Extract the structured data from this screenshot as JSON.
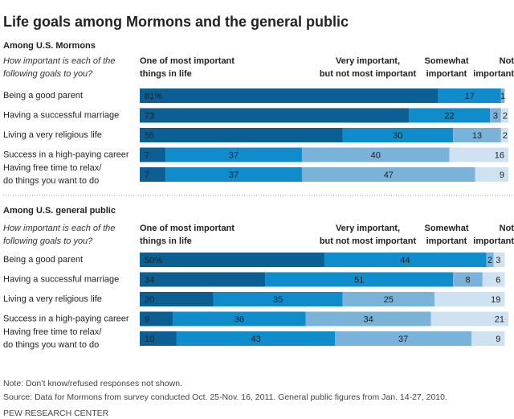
{
  "title": "Life goals among Mormons and the general public",
  "chart_data": [
    {
      "type": "bar",
      "orientation": "horizontal",
      "stacked": true,
      "heading": "Among U.S. Mormons",
      "question": "How important is each of the\nfollowing goals to you?",
      "xlim": [
        0,
        100
      ],
      "categories": [
        "Being a good parent",
        "Having a successful marriage",
        "Living a very religious life",
        "Success in a high-paying career",
        "Having free time to relax/\ndo things you want to do"
      ],
      "series": [
        {
          "name": "One of most important\nthings in life",
          "color": "#0b5f93",
          "values": [
            81,
            73,
            55,
            7,
            7
          ],
          "value_labels": [
            "81%",
            "73",
            "55",
            "7",
            "7"
          ]
        },
        {
          "name": "Very important,\nbut not most important",
          "color": "#0f8ccb",
          "values": [
            17,
            22,
            30,
            37,
            37
          ]
        },
        {
          "name": "Somewhat\nimportant",
          "color": "#7ab3da",
          "values": [
            1,
            3,
            13,
            40,
            47
          ]
        },
        {
          "name": "Not\nimportant",
          "color": "#cfe2f1",
          "values": [
            null,
            2,
            2,
            16,
            9
          ]
        }
      ]
    },
    {
      "type": "bar",
      "orientation": "horizontal",
      "stacked": true,
      "heading": "Among U.S. general public",
      "question": "How important is each of the\nfollowing goals to you?",
      "xlim": [
        0,
        100
      ],
      "categories": [
        "Being a good parent",
        "Having a successful marriage",
        "Living a very religious life",
        "Success in a high-paying career",
        "Having free time to relax/\ndo things you want to do"
      ],
      "series": [
        {
          "name": "One of most important\nthings in life",
          "color": "#0b5f93",
          "values": [
            50,
            34,
            20,
            9,
            10
          ],
          "value_labels": [
            "50%",
            "34",
            "20",
            "9",
            "10"
          ]
        },
        {
          "name": "Very important,\nbut not most important",
          "color": "#0f8ccb",
          "values": [
            44,
            51,
            35,
            36,
            43
          ]
        },
        {
          "name": "Somewhat\nimportant",
          "color": "#7ab3da",
          "values": [
            2,
            8,
            25,
            34,
            37
          ]
        },
        {
          "name": "Not\nimportant",
          "color": "#cfe2f1",
          "values": [
            3,
            6,
            19,
            21,
            9
          ]
        }
      ]
    }
  ],
  "note": "Note: Don’t know/refused responses not shown.",
  "source": "Source: Data for Mormons from survey conducted Oct. 25-Nov. 16, 2011. General public figures from Jan. 14-27, 2010.",
  "footer": "PEW RESEARCH CENTER"
}
